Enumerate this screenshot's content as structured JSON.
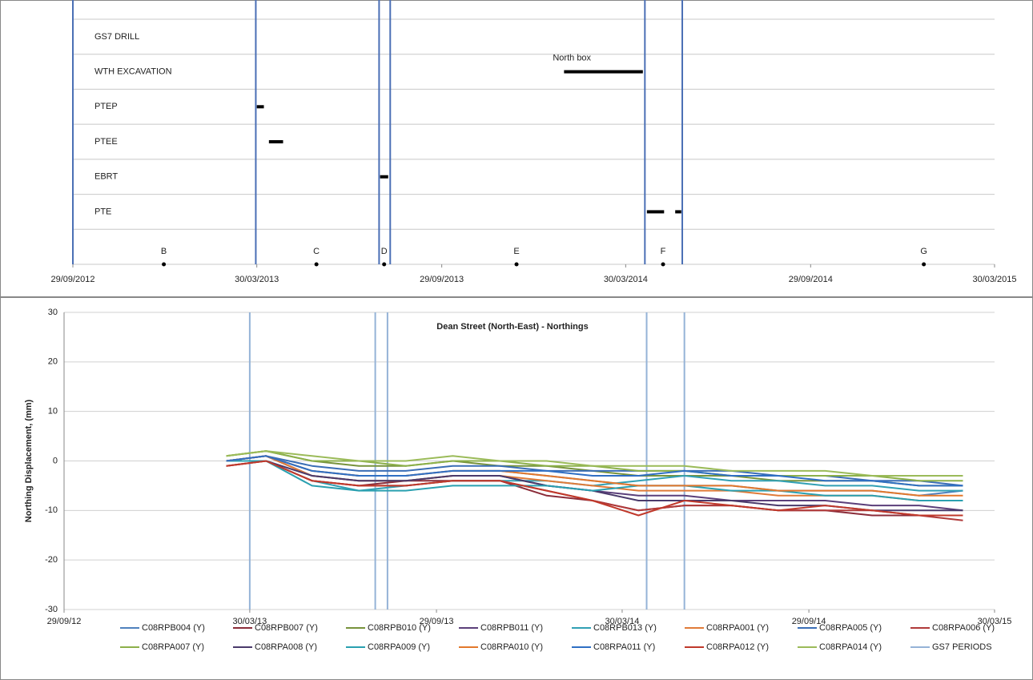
{
  "chart_data": [
    {
      "type": "gantt",
      "rows": [
        {
          "label": "GS7 DRILL",
          "bars": []
        },
        {
          "label": "WTH EXCAVATION",
          "bars": [
            {
              "start": "2014-01-28",
              "end": "2014-04-16"
            }
          ],
          "annotation": "North box"
        },
        {
          "label": "PTEP",
          "bars": [
            {
              "start": "2013-03-30",
              "end": "2013-04-06"
            }
          ]
        },
        {
          "label": "PTEE",
          "bars": [
            {
              "start": "2013-04-11",
              "end": "2013-04-25"
            }
          ]
        },
        {
          "label": "EBRT",
          "bars": [
            {
              "start": "2013-07-30",
              "end": "2013-08-07"
            }
          ]
        },
        {
          "label": "PTE",
          "bars": [
            {
              "start": "2014-04-20",
              "end": "2014-05-07"
            },
            {
              "start": "2014-05-18",
              "end": "2014-05-24"
            }
          ]
        }
      ],
      "milestones": [
        {
          "label": "B",
          "date": "2012-12-28"
        },
        {
          "label": "C",
          "date": "2013-05-28"
        },
        {
          "label": "D",
          "date": "2013-08-03"
        },
        {
          "label": "E",
          "date": "2013-12-12"
        },
        {
          "label": "F",
          "date": "2014-05-06"
        },
        {
          "label": "G",
          "date": "2015-01-19"
        }
      ],
      "periods": [
        "2012-09-29",
        "2013-03-29",
        "2013-07-29",
        "2013-08-09",
        "2014-04-18",
        "2014-05-25"
      ],
      "period_color": "#4a6fb5",
      "bar_color": "#000000",
      "xlim": [
        "2012-09-29",
        "2015-03-30"
      ],
      "xticks": [
        {
          "value": "2012-09-29",
          "label": "29/09/2012"
        },
        {
          "value": "2013-03-30",
          "label": "30/03/2013"
        },
        {
          "value": "2013-09-29",
          "label": "29/09/2013"
        },
        {
          "value": "2014-03-30",
          "label": "30/03/2014"
        },
        {
          "value": "2014-09-29",
          "label": "29/09/2014"
        },
        {
          "value": "2015-03-30",
          "label": "30/03/2015"
        }
      ],
      "grid": true
    },
    {
      "type": "line",
      "title": "Dean Street (North-East) - Northings",
      "y_label": "Northing Displacement, (mm)",
      "x": [
        "2013-03-07",
        "2013-04-15",
        "2013-05-30",
        "2013-07-15",
        "2013-08-30",
        "2013-10-15",
        "2013-11-30",
        "2014-01-15",
        "2014-03-01",
        "2014-04-15",
        "2014-05-30",
        "2014-07-15",
        "2014-08-30",
        "2014-10-15",
        "2014-11-30",
        "2015-01-15",
        "2015-02-27"
      ],
      "series": [
        {
          "name": "C08RPB004 (Y)",
          "color": "#4f81bd",
          "values": [
            0,
            1,
            -2,
            -3,
            -3,
            -2,
            -2,
            -3,
            -4,
            -5,
            -5,
            -5,
            -6,
            -6,
            -6,
            -7,
            -6
          ]
        },
        {
          "name": "C08RPB007 (Y)",
          "color": "#8b2d3a",
          "values": [
            -1,
            0,
            -4,
            -5,
            -4,
            -4,
            -4,
            -7,
            -8,
            -10,
            -9,
            -9,
            -10,
            -10,
            -11,
            -11,
            -11
          ]
        },
        {
          "name": "C08RPB010 (Y)",
          "color": "#77933c",
          "values": [
            1,
            2,
            0,
            -1,
            -1,
            0,
            -1,
            -1,
            -2,
            -3,
            -3,
            -3,
            -4,
            -4,
            -4,
            -5,
            -5
          ]
        },
        {
          "name": "C08RPB011 (Y)",
          "color": "#5b3f7a",
          "values": [
            0,
            1,
            -3,
            -4,
            -4,
            -3,
            -3,
            -5,
            -6,
            -7,
            -7,
            -8,
            -8,
            -8,
            -9,
            -9,
            -10
          ]
        },
        {
          "name": "C08RPB013 (Y)",
          "color": "#31a0b4",
          "values": [
            0,
            0,
            -4,
            -6,
            -5,
            -4,
            -4,
            -4,
            -5,
            -4,
            -3,
            -4,
            -4,
            -5,
            -5,
            -6,
            -6
          ]
        },
        {
          "name": "C08RPA001 (Y)",
          "color": "#e07b39",
          "values": [
            0,
            1,
            -3,
            -4,
            -4,
            -3,
            -3,
            -4,
            -5,
            -6,
            -6,
            -6,
            -7,
            -7,
            -7,
            -8,
            -8
          ]
        },
        {
          "name": "C08RPA005 (Y)",
          "color": "#3a6db5",
          "values": [
            0,
            1,
            -1,
            -2,
            -2,
            -1,
            -1,
            -2,
            -2,
            -2,
            -2,
            -2,
            -3,
            -3,
            -4,
            -4,
            -5
          ]
        },
        {
          "name": "C08RPA006 (Y)",
          "color": "#b03a3a",
          "values": [
            -1,
            0,
            -4,
            -5,
            -5,
            -4,
            -4,
            -6,
            -8,
            -10,
            -9,
            -9,
            -10,
            -10,
            -10,
            -11,
            -12
          ]
        },
        {
          "name": "C08RPA007 (Y)",
          "color": "#8cb04a",
          "values": [
            1,
            2,
            0,
            0,
            -1,
            0,
            0,
            -1,
            -1,
            -2,
            -2,
            -3,
            -3,
            -3,
            -3,
            -4,
            -4
          ]
        },
        {
          "name": "C08RPA008 (Y)",
          "color": "#4a3a6b",
          "values": [
            0,
            0,
            -3,
            -4,
            -4,
            -3,
            -3,
            -5,
            -6,
            -8,
            -8,
            -8,
            -9,
            -9,
            -10,
            -10,
            -10
          ]
        },
        {
          "name": "C08RPA009 (Y)",
          "color": "#2aa0b0",
          "values": [
            0,
            0,
            -5,
            -6,
            -6,
            -5,
            -5,
            -5,
            -6,
            -5,
            -5,
            -6,
            -6,
            -7,
            -7,
            -8,
            -8
          ]
        },
        {
          "name": "C08RPA010 (Y)",
          "color": "#e3782c",
          "values": [
            0,
            1,
            -2,
            -3,
            -3,
            -2,
            -2,
            -3,
            -4,
            -5,
            -5,
            -5,
            -6,
            -6,
            -6,
            -7,
            -7
          ]
        },
        {
          "name": "C08RPA011 (Y)",
          "color": "#2f6fc4",
          "values": [
            0,
            1,
            -2,
            -3,
            -3,
            -2,
            -2,
            -2,
            -3,
            -3,
            -2,
            -3,
            -3,
            -4,
            -4,
            -5,
            -5
          ]
        },
        {
          "name": "C08RPA012 (Y)",
          "color": "#c0392b",
          "values": [
            -1,
            0,
            -4,
            -5,
            -5,
            -4,
            -4,
            -6,
            -8,
            -11,
            -8,
            -9,
            -10,
            -9,
            -10,
            -11,
            -11
          ]
        },
        {
          "name": "C08RPA014 (Y)",
          "color": "#9bbb59",
          "values": [
            1,
            2,
            1,
            0,
            0,
            1,
            0,
            0,
            -1,
            -1,
            -1,
            -2,
            -2,
            -2,
            -3,
            -3,
            -3
          ]
        }
      ],
      "periods": {
        "name": "GS7 PERIODS",
        "color": "#95b3d7",
        "x": [
          "2013-03-30",
          "2013-07-31",
          "2013-08-12",
          "2014-04-23",
          "2014-05-30"
        ]
      },
      "xlim": [
        "2012-09-29",
        "2015-03-30"
      ],
      "xticks": [
        {
          "value": "2012-09-29",
          "label": "29/09/12"
        },
        {
          "value": "2013-03-30",
          "label": "30/03/13"
        },
        {
          "value": "2013-09-29",
          "label": "29/09/13"
        },
        {
          "value": "2014-03-30",
          "label": "30/03/14"
        },
        {
          "value": "2014-09-29",
          "label": "29/09/14"
        },
        {
          "value": "2015-03-30",
          "label": "30/03/15"
        }
      ],
      "ylim": [
        -30,
        30
      ],
      "yticks": [
        -30,
        -20,
        -10,
        0,
        10,
        20,
        30
      ],
      "grid": true
    }
  ]
}
